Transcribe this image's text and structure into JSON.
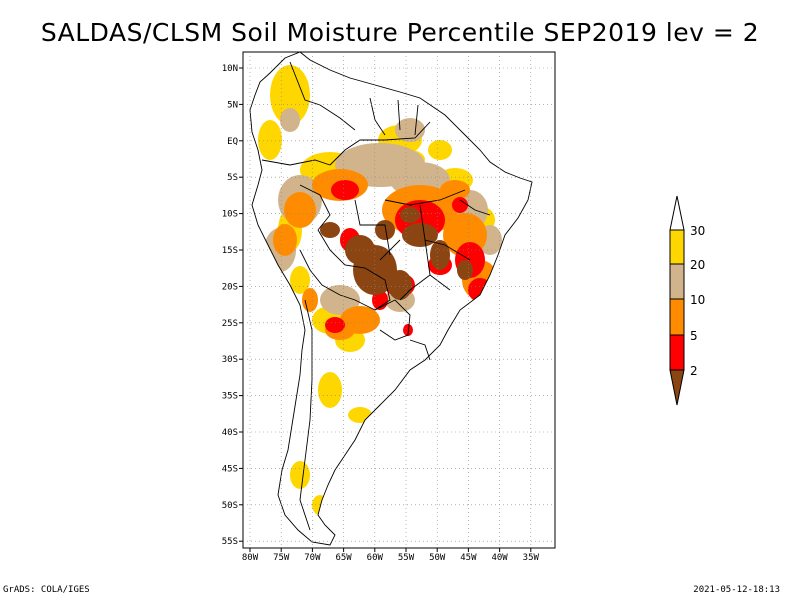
{
  "title": "SALDAS/CLSM Soil Moisture Percentile SEP2019 lev = 2",
  "footer": {
    "left": "GrADS: COLA/IGES",
    "right": "2021-05-12-18:13"
  },
  "map": {
    "region": "South America",
    "lat_labels": [
      "10N",
      "5N",
      "EQ",
      "5S",
      "10S",
      "15S",
      "20S",
      "25S",
      "30S",
      "35S",
      "40S",
      "45S",
      "50S",
      "55S"
    ],
    "lon_labels": [
      "80W",
      "75W",
      "70W",
      "65W",
      "60W",
      "55W",
      "50W",
      "45W",
      "40W",
      "35W"
    ],
    "grid": true,
    "colors": {
      "lt2": "#8B4513",
      "2-5": "#FF0000",
      "5-10": "#FF8C00",
      "10-20": "#D2B48C",
      "20-30": "#FFD700",
      "gt30": "#FFFFFF",
      "boundary": "#000000"
    }
  },
  "colorbar": {
    "labels": [
      "2",
      "5",
      "10",
      "20",
      "30"
    ],
    "colors": [
      "#8B4513",
      "#FF0000",
      "#FF8C00",
      "#D2B48C",
      "#FFD700",
      "#FFFFFF"
    ]
  }
}
